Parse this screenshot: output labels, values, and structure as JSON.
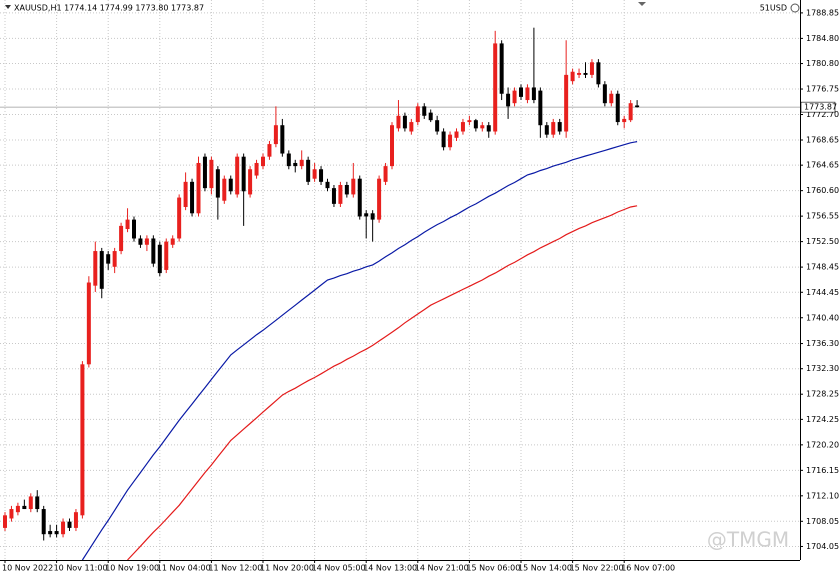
{
  "chart_data": {
    "type": "candlestick",
    "title": "XAUUSD,H1  1774.14 1774.99 1773.80 1773.87",
    "account": "51USD",
    "watermark": "@TMGM",
    "up_color": "#e8201e",
    "down_color": "#000000",
    "grid": true,
    "categories": [
      "10 Nov 2022",
      null,
      null,
      null,
      null,
      null,
      null,
      null,
      "10 Nov 11:00",
      null,
      null,
      null,
      null,
      null,
      null,
      null,
      "10 Nov 19:00",
      null,
      null,
      null,
      null,
      null,
      null,
      null,
      "11 Nov 04:00",
      null,
      null,
      null,
      null,
      null,
      null,
      null,
      "11 Nov 12:00",
      null,
      null,
      null,
      null,
      null,
      null,
      null,
      "11 Nov 20:00",
      null,
      null,
      null,
      null,
      null,
      null,
      null,
      "14 Nov 05:00",
      null,
      null,
      null,
      null,
      null,
      null,
      null,
      "14 Nov 13:00",
      null,
      null,
      null,
      null,
      null,
      null,
      null,
      "14 Nov 21:00",
      null,
      null,
      null,
      null,
      null,
      null,
      null,
      "15 Nov 06:00",
      null,
      null,
      null,
      null,
      null,
      null,
      null,
      "15 Nov 14:00",
      null,
      null,
      null,
      null,
      null,
      null,
      null,
      "15 Nov 22:00",
      null,
      null,
      null,
      null,
      null,
      null,
      null,
      "16 Nov 07:00",
      null,
      null
    ],
    "open": [
      1707,
      1708.5,
      1709.5,
      1710.5,
      1710,
      1712,
      1710,
      1706.5,
      1706.5,
      1706,
      1708,
      1707,
      1709,
      1733,
      1745.5,
      1751,
      1750.5,
      1748.5,
      1751,
      1754.5,
      1756,
      1753,
      1752,
      1753,
      1752,
      1748,
      1752,
      1753,
      1758,
      1762,
      1757,
      1766,
      1761,
      1764,
      1759,
      1762.5,
      1760,
      1766,
      1760,
      1763,
      1764.5,
      1766,
      1768,
      1771,
      1766.5,
      1765,
      1764.5,
      1765.5,
      1762.5,
      1764,
      1762,
      1761,
      1758.5,
      1761.5,
      1760,
      1762.5,
      1757,
      1757,
      1756,
      1762,
      1764.5,
      1770.5,
      1772.5,
      1770,
      1771.5,
      1774,
      1773,
      1771.8,
      1770,
      1767.5,
      1769,
      1770,
      1771.5,
      1771.8,
      1770.5,
      1771,
      1770,
      1784,
      1776,
      1774.5,
      1777,
      1775,
      1777,
      1776.5,
      1771,
      1769.5,
      1771.5,
      1770,
      1778,
      1779,
      1779.3,
      1779,
      1781,
      1777.5,
      1774.5,
      1776,
      1771.5,
      1771.8,
      1774.14
    ],
    "high": [
      1709.5,
      1710.5,
      1711,
      1711.5,
      1712.5,
      1713,
      1710.5,
      1707.5,
      1707.5,
      1708.5,
      1708.5,
      1710,
      1733.5,
      1747,
      1752.5,
      1751.5,
      1751,
      1751.5,
      1755.5,
      1757.8,
      1756.5,
      1753.5,
      1753.5,
      1753.5,
      1752.5,
      1753,
      1753.5,
      1760,
      1763.5,
      1762.5,
      1766,
      1766.5,
      1766,
      1764.5,
      1763,
      1763,
      1766.5,
      1766.5,
      1764.5,
      1765.5,
      1766.5,
      1768.5,
      1774,
      1772,
      1767,
      1765.5,
      1767,
      1766,
      1765,
      1764.5,
      1762.5,
      1761.5,
      1762,
      1762,
      1765,
      1763,
      1757.5,
      1757.5,
      1763,
      1765,
      1771.5,
      1775,
      1773,
      1772,
      1774.5,
      1774.5,
      1773.5,
      1772.5,
      1770.5,
      1770,
      1770.5,
      1772,
      1772.5,
      1772,
      1771.5,
      1771.5,
      1786,
      1784.5,
      1777,
      1777,
      1777.5,
      1777.5,
      1786.5,
      1777,
      1771.5,
      1772,
      1772,
      1784.5,
      1780,
      1780,
      1781,
      1781.5,
      1781.5,
      1778,
      1776.5,
      1776.5,
      1772.5,
      1775,
      1774.99
    ],
    "low": [
      1706.5,
      1708,
      1709,
      1710,
      1709.5,
      1709.5,
      1705,
      1705.5,
      1705.5,
      1705.5,
      1706.5,
      1706.5,
      1708.5,
      1732.5,
      1744.5,
      1743.5,
      1748,
      1747.5,
      1750.5,
      1754,
      1752.5,
      1751.5,
      1751,
      1748.5,
      1747,
      1747.5,
      1751.5,
      1752.5,
      1757.5,
      1756.5,
      1756.5,
      1760.5,
      1760,
      1756,
      1758.5,
      1760,
      1759.5,
      1755,
      1759.5,
      1762.5,
      1764,
      1765.5,
      1767.5,
      1766,
      1764,
      1763.5,
      1764,
      1761.5,
      1762,
      1761.5,
      1760.5,
      1758,
      1758,
      1759.5,
      1759.5,
      1756,
      1753,
      1752.5,
      1755.5,
      1761.5,
      1764,
      1770,
      1770,
      1769.5,
      1771,
      1772,
      1771.5,
      1769.5,
      1767,
      1767,
      1768.5,
      1769.5,
      1771,
      1770,
      1770,
      1769,
      1769.5,
      1775,
      1772,
      1774,
      1775,
      1774.5,
      1774.5,
      1769,
      1769,
      1769,
      1769.5,
      1769,
      1777.5,
      1778.5,
      1778.5,
      1778.5,
      1777,
      1774,
      1774,
      1771,
      1770.5,
      1771.5,
      1773.8
    ],
    "close": [
      1709,
      1710,
      1710.5,
      1710,
      1712,
      1710,
      1706,
      1706,
      1706,
      1708,
      1707,
      1709.5,
      1733,
      1746,
      1751,
      1745,
      1749,
      1751,
      1755,
      1756,
      1753,
      1752,
      1753,
      1749,
      1747.5,
      1752.5,
      1753,
      1759.5,
      1762,
      1757,
      1765,
      1761,
      1765.5,
      1759.5,
      1762.5,
      1760.5,
      1766,
      1760.5,
      1764,
      1765,
      1766,
      1768,
      1771,
      1766.5,
      1764.5,
      1764.5,
      1765.5,
      1762,
      1764,
      1762,
      1761,
      1758.5,
      1761.5,
      1760,
      1762.5,
      1756.5,
      1756.5,
      1756,
      1762.5,
      1764.5,
      1771,
      1772.5,
      1770.5,
      1771.5,
      1774,
      1772.5,
      1771.8,
      1770,
      1767.5,
      1769.5,
      1770,
      1771.5,
      1771.8,
      1770.5,
      1771,
      1770,
      1784,
      1776,
      1774,
      1776.5,
      1775.5,
      1777,
      1775,
      1771,
      1769.5,
      1771.5,
      1770,
      1779,
      1779.5,
      1779.3,
      1779,
      1781,
      1777.5,
      1774.5,
      1776,
      1771.5,
      1772,
      1774.5,
      1773.87
    ],
    "lines": [
      {
        "color": "#0a1aa6",
        "values": [
          null,
          null,
          null,
          null,
          null,
          null,
          null,
          null,
          null,
          null,
          null,
          null,
          1701.9,
          1703.5,
          1705.1,
          1706.7,
          1708.2,
          1709.8,
          1711.4,
          1713,
          1714.4,
          1715.8,
          1717.2,
          1718.6,
          1719.9,
          1721.3,
          1722.7,
          1724.1,
          1725.4,
          1726.7,
          1728,
          1729.3,
          1730.6,
          1731.9,
          1733.2,
          1734.5,
          1735.3,
          1736.1,
          1736.9,
          1737.7,
          1738.4,
          1739.2,
          1740,
          1740.8,
          1741.6,
          1742.4,
          1743.2,
          1744,
          1744.8,
          1745.6,
          1746.4,
          1746.7,
          1747.1,
          1747.4,
          1747.8,
          1748.1,
          1748.5,
          1748.8,
          1749.4,
          1750.1,
          1750.7,
          1751.4,
          1752,
          1752.7,
          1753.3,
          1754,
          1754.6,
          1755.2,
          1755.7,
          1756.3,
          1756.8,
          1757.4,
          1758,
          1758.5,
          1759.1,
          1759.7,
          1760.2,
          1760.8,
          1761.4,
          1761.9,
          1762.5,
          1763.1,
          1763.4,
          1763.8,
          1764.1,
          1764.5,
          1764.8,
          1765.1,
          1765.5,
          1765.8,
          1766.1,
          1766.4,
          1766.7,
          1767,
          1767.3,
          1767.6,
          1767.9,
          1768.2,
          1768.4
        ]
      },
      {
        "color": "#e41b1b",
        "values": [
          null,
          null,
          null,
          null,
          null,
          null,
          null,
          null,
          null,
          null,
          null,
          null,
          null,
          null,
          null,
          null,
          null,
          null,
          null,
          1701.9,
          1703,
          1704.1,
          1705.2,
          1706.3,
          1707.3,
          1708.4,
          1709.5,
          1710.6,
          1711.9,
          1713.2,
          1714.5,
          1715.8,
          1717,
          1718.3,
          1719.6,
          1720.9,
          1721.8,
          1722.7,
          1723.6,
          1724.5,
          1725.4,
          1726.3,
          1727.2,
          1728.1,
          1728.7,
          1729.2,
          1729.8,
          1730.4,
          1730.9,
          1731.5,
          1732.1,
          1732.7,
          1733.2,
          1733.8,
          1734.3,
          1734.9,
          1735.4,
          1736,
          1736.7,
          1737.4,
          1738.1,
          1738.8,
          1739.6,
          1740.3,
          1741,
          1741.7,
          1742.4,
          1742.9,
          1743.4,
          1743.9,
          1744.4,
          1744.9,
          1745.4,
          1745.9,
          1746.4,
          1747,
          1747.5,
          1748.1,
          1748.7,
          1749.2,
          1749.8,
          1750.4,
          1750.9,
          1751.5,
          1752,
          1752.5,
          1753,
          1753.6,
          1754.1,
          1754.6,
          1755,
          1755.5,
          1755.9,
          1756.3,
          1756.7,
          1757.2,
          1757.6,
          1758,
          1758.2
        ]
      }
    ],
    "current_price": 1773.87,
    "ylim": [
      1701.9,
      1790.9
    ],
    "yticks": [
      1788.85,
      {
        "value": 1784.8,
        "label": "1784.80"
      },
      {
        "value": 1780.8,
        "label": "1780.80"
      },
      1776.75,
      {
        "value": 1772.7,
        "label": "1772.70"
      },
      1768.65,
      1764.65,
      {
        "value": 1760.6,
        "label": "1760.60"
      },
      1756.55,
      {
        "value": 1752.5,
        "label": "1752.50"
      },
      1748.45,
      1744.45,
      {
        "value": 1740.4,
        "label": "1740.40"
      },
      {
        "value": 1736.3,
        "label": "1736.30"
      },
      {
        "value": 1732.3,
        "label": "1732.30"
      },
      1728.25,
      1724.25,
      {
        "value": 1720.2,
        "label": "1720.20"
      },
      1716.15,
      {
        "value": 1712.1,
        "label": "1712.10"
      },
      1708.05,
      1704.05
    ]
  }
}
